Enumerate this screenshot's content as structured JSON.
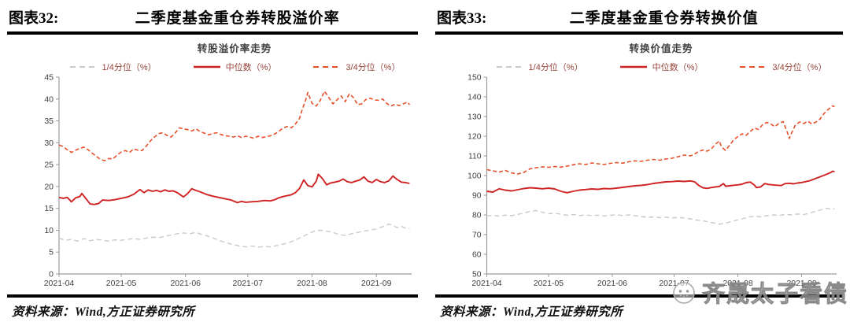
{
  "watermark": {
    "text": "齐晟太子看债",
    "icon": "smiley-face-icon",
    "color": "#9a9a9a"
  },
  "charts": [
    {
      "figure_label": "图表32:",
      "title": "二季度基金重仓券转股溢价率",
      "source": "资料来源：Wind,方正证券研究所"
    },
    {
      "figure_label": "图表33:",
      "title": "二季度基金重仓券转换价值",
      "source": "资料来源：Wind,方正证券研究所"
    }
  ],
  "chart_data": [
    {
      "type": "line",
      "title": "转股溢价率走势",
      "grid": false,
      "legend_position": "top",
      "x_axis": {
        "tick_labels": [
          "2021-04",
          "2021-05",
          "2021-06",
          "2021-07",
          "2021-08",
          "2021-09"
        ],
        "tick_days": [
          0,
          30,
          61,
          91,
          122,
          153
        ],
        "domain_days": [
          0,
          170
        ]
      },
      "y_axis": {
        "min": 0,
        "max": 45,
        "step": 5,
        "ticks": [
          0,
          5,
          10,
          15,
          20,
          25,
          30,
          35,
          40,
          45
        ]
      },
      "axis_color": "#9b9b9b",
      "label_color": "#404040",
      "series": [
        {
          "name": "1/4分位（%）",
          "color": "#c9c9c9",
          "dash": "6 4",
          "width": 1.4,
          "points": [
            0,
            8.2,
            3,
            7.7,
            6,
            7.9,
            9,
            7.5,
            12,
            8.1,
            15,
            7.6,
            18,
            7.9,
            21,
            7.7,
            24,
            7.5,
            27,
            7.8,
            30,
            7.7,
            33,
            7.9,
            36,
            8.1,
            39,
            7.9,
            42,
            8.2,
            45,
            8.4,
            48,
            8.3,
            51,
            8.6,
            54,
            8.9,
            57,
            9.2,
            60,
            9.4,
            63,
            9.2,
            66,
            9.5,
            69,
            9.0,
            72,
            8.6,
            75,
            8.1,
            78,
            7.5,
            81,
            7.1,
            84,
            6.7,
            87,
            6.4,
            90,
            6.2,
            93,
            6.4,
            96,
            6.1,
            99,
            6.3,
            102,
            6.2,
            105,
            6.5,
            108,
            6.8,
            111,
            7.2,
            114,
            7.8,
            117,
            8.4,
            120,
            9.1,
            123,
            9.8,
            126,
            10.0,
            129,
            9.8,
            132,
            9.5,
            135,
            9.0,
            138,
            8.8,
            141,
            9.2,
            144,
            9.5,
            147,
            9.8,
            150,
            10.0,
            153,
            10.3,
            156,
            10.8,
            159,
            11.4,
            161,
            11.1,
            163,
            10.6,
            165,
            10.9,
            167,
            10.5,
            169,
            10.3
          ]
        },
        {
          "name": "中位数（%）",
          "color": "#cf2323",
          "dash": null,
          "width": 1.9,
          "points": [
            0,
            17.5,
            2,
            17.3,
            4,
            17.5,
            6,
            16.5,
            8,
            17.4,
            10,
            17.7,
            11,
            18.4,
            13,
            17.2,
            15,
            16.0,
            17,
            15.9,
            19,
            16.1,
            21,
            16.9,
            24,
            16.8,
            27,
            17.0,
            30,
            17.3,
            33,
            17.6,
            36,
            18.2,
            39,
            19.3,
            41,
            18.6,
            43,
            19.2,
            45,
            18.9,
            47,
            19.1,
            49,
            18.8,
            51,
            19.2,
            53,
            18.9,
            55,
            19.0,
            57,
            18.6,
            60,
            17.6,
            62,
            18.4,
            64,
            19.5,
            66,
            19.1,
            68,
            18.8,
            71,
            18.2,
            74,
            17.8,
            77,
            17.5,
            80,
            17.2,
            83,
            16.9,
            86,
            16.3,
            88,
            16.6,
            90,
            16.4,
            93,
            16.5,
            96,
            16.6,
            99,
            16.8,
            102,
            16.7,
            104,
            17.0,
            106,
            17.4,
            108,
            17.7,
            110,
            17.9,
            112,
            18.1,
            114,
            18.6,
            116,
            19.6,
            118,
            21.5,
            120,
            20.2,
            122,
            19.9,
            124,
            21.2,
            125,
            22.8,
            127,
            21.8,
            129,
            20.4,
            131,
            20.8,
            133,
            21.0,
            135,
            21.2,
            137,
            21.7,
            139,
            21.1,
            141,
            20.9,
            143,
            21.2,
            145,
            21.5,
            147,
            22.2,
            149,
            21.2,
            151,
            20.9,
            153,
            21.6,
            155,
            21.1,
            157,
            20.9,
            159,
            21.3,
            161,
            22.4,
            163,
            21.6,
            165,
            21.0,
            167,
            20.9,
            169,
            20.7
          ]
        },
        {
          "name": "3/4分位（%）",
          "color": "#e8502a",
          "dash": "5 3",
          "width": 1.6,
          "points": [
            0,
            29.5,
            2,
            29.1,
            4,
            28.4,
            6,
            27.8,
            8,
            28.3,
            10,
            28.7,
            12,
            29.0,
            14,
            28.4,
            16,
            27.6,
            18,
            26.9,
            20,
            26.2,
            22,
            25.9,
            24,
            26.4,
            26,
            26.3,
            28,
            27.2,
            30,
            27.9,
            32,
            28.2,
            34,
            27.8,
            36,
            28.6,
            38,
            28.3,
            40,
            28.2,
            42,
            29.2,
            44,
            30.4,
            46,
            31.3,
            48,
            32.1,
            50,
            32.3,
            52,
            31.7,
            54,
            31.3,
            56,
            32.2,
            58,
            33.4,
            60,
            33.2,
            62,
            33.0,
            64,
            32.7,
            66,
            33.2,
            68,
            32.6,
            70,
            32.2,
            72,
            31.8,
            74,
            32.1,
            76,
            32.3,
            78,
            31.9,
            80,
            31.6,
            82,
            31.5,
            84,
            31.3,
            86,
            31.6,
            88,
            31.2,
            90,
            31.5,
            92,
            31.3,
            94,
            31.0,
            96,
            31.5,
            98,
            31.2,
            100,
            31.4,
            102,
            31.6,
            104,
            32.0,
            106,
            32.6,
            108,
            33.4,
            110,
            33.7,
            112,
            33.4,
            114,
            34.3,
            116,
            35.6,
            117,
            37.2,
            119,
            39.9,
            120,
            41.5,
            122,
            39.0,
            124,
            38.4,
            126,
            39.7,
            128,
            41.8,
            130,
            40.4,
            132,
            38.9,
            134,
            39.8,
            136,
            40.7,
            138,
            39.4,
            140,
            41.2,
            142,
            40.3,
            144,
            38.7,
            146,
            38.9,
            148,
            39.9,
            150,
            40.2,
            152,
            39.8,
            154,
            39.7,
            156,
            40.0,
            158,
            39.0,
            160,
            38.4,
            162,
            38.8,
            164,
            38.5,
            166,
            38.9,
            168,
            39.3,
            169,
            38.7
          ]
        }
      ]
    },
    {
      "type": "line",
      "title": "转换价值走势",
      "grid": false,
      "legend_position": "top",
      "x_axis": {
        "tick_labels": [
          "2021-04",
          "2021-05",
          "2021-06",
          "2021-07",
          "2021-08",
          "2021-09"
        ],
        "tick_days": [
          0,
          30,
          61,
          91,
          122,
          153
        ],
        "domain_days": [
          0,
          170
        ]
      },
      "y_axis": {
        "min": 50,
        "max": 150,
        "step": 10,
        "ticks": [
          50,
          60,
          70,
          80,
          90,
          100,
          110,
          120,
          130,
          140,
          150
        ]
      },
      "axis_color": "#9b9b9b",
      "label_color": "#404040",
      "series": [
        {
          "name": "1/4分位（%）",
          "color": "#c9c9c9",
          "dash": "6 4",
          "width": 1.4,
          "points": [
            0,
            79.5,
            3,
            79.8,
            6,
            79.4,
            9,
            79.9,
            12,
            79.6,
            15,
            80.2,
            18,
            81.0,
            21,
            81.8,
            24,
            82.2,
            27,
            81.4,
            30,
            80.6,
            33,
            80.9,
            36,
            80.4,
            39,
            79.8,
            42,
            80.2,
            45,
            79.7,
            48,
            80.0,
            51,
            79.6,
            54,
            79.9,
            57,
            79.5,
            60,
            79.8,
            63,
            80.1,
            66,
            79.7,
            69,
            80.0,
            72,
            79.6,
            75,
            79.2,
            78,
            78.8,
            81,
            79.0,
            84,
            78.6,
            87,
            78.9,
            90,
            78.5,
            93,
            78.8,
            96,
            78.4,
            99,
            78.0,
            102,
            77.4,
            105,
            77.0,
            108,
            76.4,
            111,
            75.8,
            113,
            75.3,
            115,
            75.7,
            118,
            76.4,
            121,
            77.2,
            124,
            78.0,
            127,
            78.8,
            130,
            79.4,
            133,
            79.0,
            136,
            79.6,
            139,
            80.0,
            142,
            79.7,
            145,
            80.3,
            148,
            80.0,
            151,
            80.5,
            154,
            80.2,
            157,
            80.9,
            159,
            81.6,
            161,
            82.2,
            163,
            82.8,
            165,
            83.4,
            167,
            83.0,
            168,
            83.3,
            169,
            83.0
          ]
        },
        {
          "name": "中位数（%）",
          "color": "#cf2323",
          "dash": null,
          "width": 1.9,
          "points": [
            0,
            92.0,
            3,
            91.6,
            6,
            93.3,
            9,
            92.6,
            12,
            92.2,
            15,
            92.8,
            18,
            93.4,
            21,
            93.8,
            24,
            93.6,
            27,
            93.3,
            30,
            93.6,
            33,
            93.2,
            36,
            92.0,
            39,
            91.3,
            42,
            92.0,
            45,
            92.6,
            48,
            92.9,
            51,
            93.2,
            54,
            93.0,
            57,
            93.4,
            60,
            93.3,
            63,
            93.6,
            66,
            94.0,
            69,
            94.4,
            72,
            94.8,
            75,
            95.0,
            78,
            95.4,
            81,
            96.0,
            84,
            96.4,
            87,
            96.8,
            90,
            96.9,
            93,
            97.2,
            96,
            97.0,
            99,
            97.3,
            101,
            96.8,
            103,
            95.0,
            105,
            93.8,
            107,
            93.5,
            109,
            93.9,
            111,
            94.2,
            113,
            94.5,
            115,
            95.9,
            116,
            94.6,
            118,
            94.8,
            120,
            95.1,
            122,
            95.3,
            124,
            95.6,
            126,
            96.4,
            128,
            96.7,
            130,
            95.2,
            131,
            93.9,
            133,
            94.2,
            135,
            95.9,
            137,
            95.5,
            139,
            95.3,
            141,
            95.1,
            143,
            94.9,
            145,
            95.9,
            147,
            96.1,
            149,
            95.8,
            151,
            96.2,
            153,
            96.5,
            155,
            96.9,
            157,
            97.4,
            159,
            98.2,
            161,
            99.0,
            163,
            99.8,
            165,
            100.6,
            167,
            101.5,
            168,
            102.2,
            169,
            102.0
          ]
        },
        {
          "name": "3/4分位（%）",
          "color": "#e8502a",
          "dash": "5 3",
          "width": 1.6,
          "points": [
            0,
            103.0,
            3,
            102.4,
            6,
            101.8,
            9,
            102.6,
            12,
            101.4,
            15,
            100.8,
            18,
            101.6,
            21,
            103.4,
            24,
            104.0,
            27,
            104.4,
            30,
            104.2,
            33,
            104.6,
            36,
            104.3,
            39,
            104.8,
            42,
            105.5,
            45,
            106.0,
            48,
            105.6,
            51,
            106.4,
            54,
            106.0,
            57,
            105.6,
            60,
            106.2,
            63,
            106.6,
            66,
            106.3,
            69,
            107.0,
            72,
            107.5,
            75,
            107.2,
            78,
            107.8,
            81,
            108.2,
            84,
            107.8,
            87,
            108.4,
            90,
            108.8,
            93,
            109.6,
            96,
            110.4,
            99,
            110.0,
            101,
            111.0,
            103,
            112.2,
            105,
            113.0,
            107,
            112.4,
            109,
            113.4,
            111,
            115.8,
            113,
            117.6,
            114,
            114.6,
            116,
            112.8,
            118,
            115.4,
            120,
            118.2,
            122,
            119.8,
            124,
            121.2,
            126,
            120.4,
            128,
            122.4,
            130,
            124.2,
            132,
            123.4,
            134,
            125.8,
            136,
            127.0,
            138,
            126.2,
            140,
            124.8,
            142,
            126.6,
            144,
            127.4,
            146,
            122.0,
            147,
            118.8,
            148,
            121.4,
            150,
            125.8,
            152,
            127.2,
            154,
            126.4,
            156,
            127.6,
            158,
            126.2,
            160,
            127.2,
            162,
            128.8,
            163,
            130.4,
            165,
            132.8,
            167,
            134.6,
            168,
            135.4,
            169,
            135.0
          ]
        }
      ]
    }
  ]
}
